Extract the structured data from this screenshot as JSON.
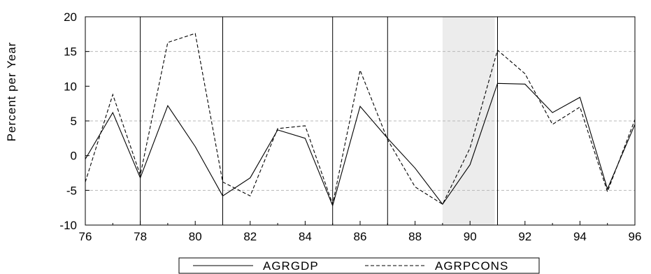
{
  "chart_data": {
    "type": "line",
    "ylabel": "Percent per Year",
    "xlabel": "",
    "xlim": [
      76,
      96
    ],
    "ylim": [
      -10,
      20
    ],
    "x_ticks": [
      "76",
      "78",
      "80",
      "82",
      "84",
      "86",
      "88",
      "90",
      "92",
      "94",
      "96"
    ],
    "y_ticks": [
      "20",
      "15",
      "10",
      "5",
      "0",
      "-5",
      "-10"
    ],
    "y_grid": [
      -5,
      5,
      15
    ],
    "vertical_lines": [
      78,
      81,
      85,
      87,
      91
    ],
    "shaded_region": [
      89,
      90.9
    ],
    "shade_color": "#ececec",
    "x": [
      76,
      77,
      78,
      79,
      80,
      81,
      82,
      83,
      84,
      85,
      86,
      87,
      88,
      89,
      90,
      91,
      92,
      93,
      94,
      95,
      96
    ],
    "series": [
      {
        "name": "AGRGDP",
        "style": "solid",
        "values": [
          -0.5,
          6.2,
          -3.2,
          7.2,
          1.3,
          -5.8,
          -3.2,
          3.7,
          2.5,
          -7.2,
          7.1,
          2.5,
          -1.8,
          -7.0,
          -1.3,
          10.4,
          10.3,
          6.2,
          8.4,
          -4.8,
          4.5
        ]
      },
      {
        "name": "AGRPCONS",
        "style": "dashed",
        "values": [
          -3.8,
          8.8,
          -2.8,
          16.3,
          17.6,
          -3.8,
          -5.8,
          3.9,
          4.3,
          -7.0,
          12.3,
          2.3,
          -4.5,
          -7.0,
          1.1,
          15.2,
          11.8,
          4.5,
          7.0,
          -5.2,
          5.2
        ]
      }
    ],
    "legend_position": "bottom-center"
  }
}
